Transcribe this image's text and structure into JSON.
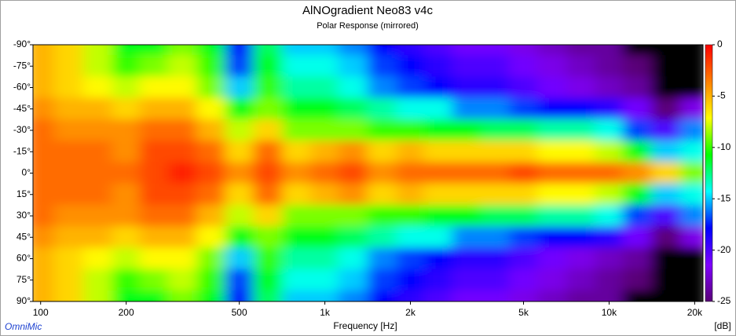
{
  "chart_data": {
    "type": "heatmap",
    "title": "AlNOgradient Neo83 v4c",
    "subtitle": "Polar Response (mirrored)",
    "x_label": "Frequency [Hz]",
    "z_label": "[dB]",
    "watermark": "OmniMic",
    "x_log": true,
    "x": [
      100,
      125,
      160,
      200,
      250,
      315,
      400,
      500,
      630,
      800,
      1000,
      1250,
      1600,
      2000,
      2500,
      3150,
      4000,
      5000,
      6300,
      8000,
      10000,
      12500,
      16000,
      20000
    ],
    "y": [
      -90,
      -75,
      -60,
      -45,
      -30,
      -15,
      0,
      15,
      30,
      45,
      60,
      75,
      90
    ],
    "z": [
      [
        -5,
        -6,
        -8,
        -11,
        -11,
        -9,
        -11,
        -18,
        -12,
        -15,
        -15,
        -16,
        -18,
        -19,
        -20,
        -21,
        -21,
        -22,
        -23,
        -24,
        -24,
        -26,
        -28,
        -28
      ],
      [
        -5,
        -6,
        -8,
        -10,
        -9,
        -8,
        -10,
        -17,
        -11,
        -14,
        -14,
        -15,
        -17,
        -18,
        -19,
        -20,
        -20,
        -21,
        -22,
        -23,
        -24,
        -25,
        -27,
        -28
      ],
      [
        -5,
        -6,
        -7,
        -8,
        -7,
        -7,
        -9,
        -15,
        -10,
        -13,
        -13,
        -14,
        -16,
        -17,
        -18,
        -19,
        -19,
        -20,
        -21,
        -22,
        -23,
        -24,
        -26,
        -27
      ],
      [
        -4,
        -5,
        -5,
        -6,
        -5,
        -5,
        -7,
        -11,
        -9,
        -11,
        -11,
        -12,
        -13,
        -14,
        -14,
        -16,
        -16,
        -17,
        -18,
        -18,
        -19,
        -21,
        -25,
        -22
      ],
      [
        -3,
        -4,
        -4,
        -4,
        -3,
        -3,
        -5,
        -8,
        -6,
        -9,
        -9,
        -9,
        -10,
        -10,
        -11,
        -11,
        -12,
        -12,
        -13,
        -13,
        -14,
        -17,
        -20,
        -16
      ],
      [
        -3,
        -3,
        -3,
        -4,
        -2,
        -2,
        -3,
        -6,
        -3,
        -6,
        -5,
        -4,
        -6,
        -5,
        -6,
        -6,
        -6,
        -6,
        -7,
        -7,
        -8,
        -11,
        -15,
        -14
      ],
      [
        -3,
        -3,
        -3,
        -3,
        -2,
        -1,
        -2,
        -4,
        -2,
        -4,
        -3,
        -2,
        -4,
        -3,
        -3,
        -3,
        -3,
        -2,
        -3,
        -3,
        -3,
        -4,
        -6,
        -9
      ],
      [
        -3,
        -3,
        -3,
        -4,
        -2,
        -2,
        -3,
        -6,
        -3,
        -6,
        -5,
        -4,
        -6,
        -5,
        -6,
        -6,
        -6,
        -6,
        -7,
        -7,
        -8,
        -11,
        -15,
        -14
      ],
      [
        -3,
        -4,
        -4,
        -4,
        -3,
        -3,
        -5,
        -8,
        -6,
        -9,
        -9,
        -9,
        -10,
        -10,
        -11,
        -11,
        -12,
        -12,
        -13,
        -13,
        -14,
        -17,
        -20,
        -16
      ],
      [
        -4,
        -5,
        -5,
        -6,
        -5,
        -5,
        -7,
        -11,
        -9,
        -11,
        -11,
        -12,
        -13,
        -14,
        -14,
        -16,
        -16,
        -17,
        -18,
        -18,
        -19,
        -21,
        -25,
        -22
      ],
      [
        -5,
        -6,
        -7,
        -8,
        -7,
        -7,
        -9,
        -15,
        -10,
        -13,
        -13,
        -14,
        -16,
        -17,
        -18,
        -19,
        -19,
        -20,
        -21,
        -22,
        -23,
        -24,
        -26,
        -27
      ],
      [
        -5,
        -6,
        -8,
        -10,
        -9,
        -8,
        -10,
        -17,
        -11,
        -14,
        -14,
        -15,
        -17,
        -18,
        -19,
        -20,
        -20,
        -21,
        -22,
        -23,
        -24,
        -25,
        -27,
        -28
      ],
      [
        -5,
        -6,
        -8,
        -11,
        -11,
        -9,
        -11,
        -18,
        -12,
        -15,
        -15,
        -16,
        -18,
        -19,
        -20,
        -21,
        -21,
        -22,
        -23,
        -24,
        -24,
        -26,
        -28,
        -28
      ]
    ],
    "xlim": [
      94,
      21400
    ],
    "xticks": [
      100,
      200,
      500,
      {
        "value": 1000,
        "label": "1k"
      },
      {
        "value": 2000,
        "label": "2k"
      },
      {
        "value": 5000,
        "label": "5k"
      },
      {
        "value": 10000,
        "label": "10k"
      },
      {
        "value": 20000,
        "label": "20k"
      }
    ],
    "ylim": [
      -90,
      90
    ],
    "yticks": [
      {
        "value": -90,
        "label": "-90°"
      },
      {
        "value": -75,
        "label": "-75°"
      },
      {
        "value": -60,
        "label": "-60°"
      },
      {
        "value": -45,
        "label": "-45°"
      },
      {
        "value": -30,
        "label": "-30°"
      },
      {
        "value": -15,
        "label": "-15°"
      },
      {
        "value": 0,
        "label": "0°"
      },
      {
        "value": 15,
        "label": "15°"
      },
      {
        "value": 30,
        "label": "30°"
      },
      {
        "value": 45,
        "label": "45°"
      },
      {
        "value": 60,
        "label": "60°"
      },
      {
        "value": 75,
        "label": "75°"
      },
      {
        "value": 90,
        "label": "90°"
      }
    ],
    "zlim": [
      -25,
      0
    ],
    "zticks": [
      0,
      -5,
      -10,
      -15,
      -20,
      -25
    ],
    "colormap": [
      "#5a0078",
      "#8000ff",
      "#0000ff",
      "#00ffff",
      "#00ff00",
      "#ffff00",
      "#ff8000",
      "#ff0000"
    ],
    "below_color": "#000000"
  }
}
